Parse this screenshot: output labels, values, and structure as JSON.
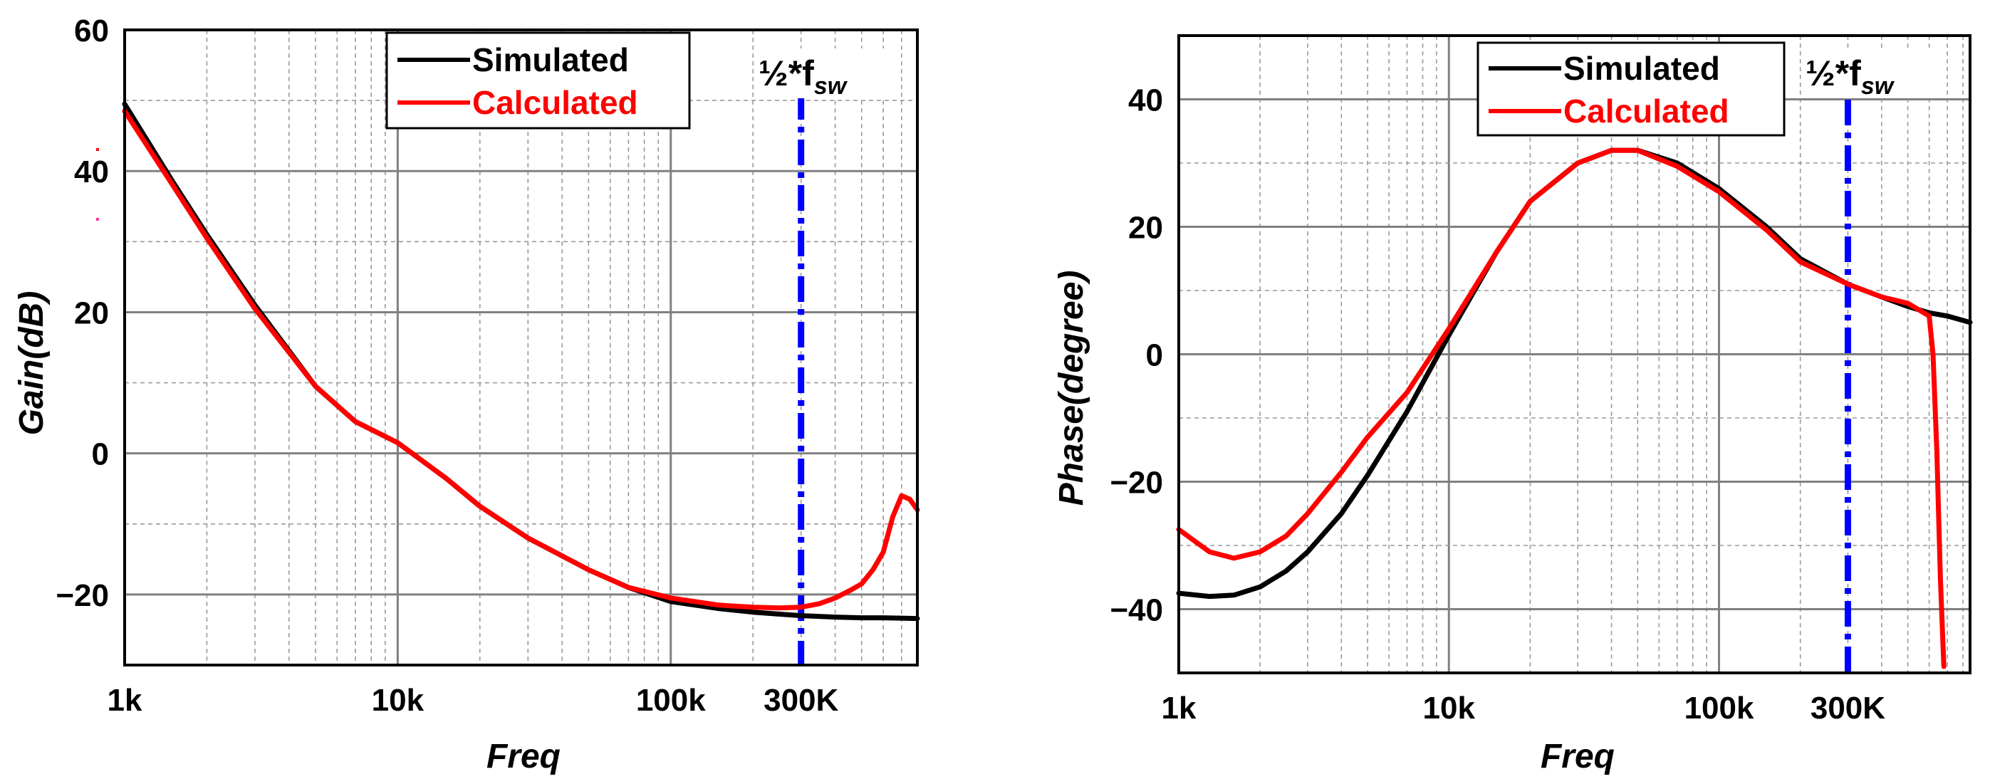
{
  "chart_data": [
    {
      "type": "line",
      "title": "",
      "xlabel": "Freq",
      "ylabel": "Gain(dB)",
      "xscale": "log",
      "xlim": [
        1000,
        800000
      ],
      "ylim": [
        -30,
        60
      ],
      "x_ticks": [
        1000,
        10000,
        100000,
        300000
      ],
      "x_tick_labels": [
        "1k",
        "10k",
        "100k",
        "300K"
      ],
      "y_ticks": [
        -20,
        0,
        20,
        40,
        60
      ],
      "y_tick_labels": [
        "−20",
        "0",
        "20",
        "40",
        "60"
      ],
      "grid": true,
      "legend": {
        "placement": "top-center",
        "entries": [
          "Simulated",
          "Calculated"
        ]
      },
      "vline": {
        "x": 300000,
        "color": "#0000ff",
        "label_main": "½*f",
        "label_sub": "sw"
      },
      "series": [
        {
          "name": "Simulated",
          "color": "#000000",
          "x": [
            1000,
            1500,
            2000,
            3000,
            5000,
            7000,
            10000,
            15000,
            20000,
            30000,
            50000,
            70000,
            100000,
            150000,
            200000,
            300000,
            400000,
            500000,
            600000,
            800000
          ],
          "y": [
            49.5,
            38.5,
            31,
            21,
            9.5,
            4.5,
            1.5,
            -3.5,
            -7.5,
            -12,
            -16.5,
            -19,
            -21,
            -22,
            -22.5,
            -23,
            -23.2,
            -23.3,
            -23.3,
            -23.4
          ]
        },
        {
          "name": "Calculated",
          "color": "#ff0000",
          "x": [
            1000,
            1500,
            2000,
            3000,
            5000,
            7000,
            10000,
            15000,
            20000,
            30000,
            50000,
            70000,
            100000,
            150000,
            200000,
            250000,
            300000,
            350000,
            400000,
            450000,
            500000,
            550000,
            600000,
            650000,
            700000,
            750000,
            800000
          ],
          "y": [
            48.5,
            38,
            30.5,
            20.5,
            9.5,
            4.5,
            1.5,
            -3.5,
            -7.5,
            -12,
            -16.5,
            -19,
            -20.5,
            -21.5,
            -21.8,
            -21.9,
            -21.8,
            -21.3,
            -20.5,
            -19.5,
            -18.5,
            -16.5,
            -14,
            -9,
            -6,
            -6.5,
            -8
          ]
        }
      ]
    },
    {
      "type": "line",
      "title": "",
      "xlabel": "Freq",
      "ylabel": "Phase(degree)",
      "xscale": "log",
      "xlim": [
        1000,
        850000
      ],
      "ylim": [
        -50,
        50
      ],
      "x_ticks": [
        1000,
        10000,
        100000,
        300000
      ],
      "x_tick_labels": [
        "1k",
        "10k",
        "100k",
        "300K"
      ],
      "y_ticks": [
        -40,
        -20,
        0,
        20,
        40
      ],
      "y_tick_labels": [
        "−40",
        "−20",
        "0",
        "20",
        "40"
      ],
      "grid": true,
      "legend": {
        "placement": "top-right",
        "entries": [
          "Simulated",
          "Calculated"
        ]
      },
      "vline": {
        "x": 300000,
        "color": "#0000ff",
        "label_main": "½*f",
        "label_sub": "sw"
      },
      "series": [
        {
          "name": "Simulated",
          "color": "#000000",
          "x": [
            1000,
            1300,
            1600,
            2000,
            2500,
            3000,
            4000,
            5000,
            7000,
            10000,
            15000,
            20000,
            30000,
            40000,
            50000,
            70000,
            100000,
            150000,
            200000,
            300000,
            400000,
            500000,
            600000,
            700000,
            850000
          ],
          "y": [
            -37.5,
            -38,
            -37.8,
            -36.5,
            -34,
            -31,
            -25,
            -19,
            -9,
            3,
            16,
            24,
            30,
            32,
            32,
            30,
            26,
            20,
            15,
            11,
            9,
            7.5,
            6.5,
            6,
            5
          ]
        },
        {
          "name": "Calculated",
          "color": "#ff0000",
          "x": [
            1000,
            1300,
            1600,
            2000,
            2500,
            3000,
            4000,
            5000,
            7000,
            10000,
            15000,
            20000,
            30000,
            40000,
            50000,
            70000,
            100000,
            150000,
            200000,
            300000,
            400000,
            500000,
            600000,
            620000,
            640000,
            660000,
            680000
          ],
          "y": [
            -27.5,
            -31,
            -32,
            -31,
            -28.5,
            -25,
            -18.5,
            -13,
            -6,
            4,
            16,
            24,
            30,
            32,
            32,
            29.5,
            25.5,
            19.5,
            14.5,
            11,
            9,
            8,
            6,
            0,
            -15,
            -35,
            -49
          ]
        }
      ]
    }
  ]
}
